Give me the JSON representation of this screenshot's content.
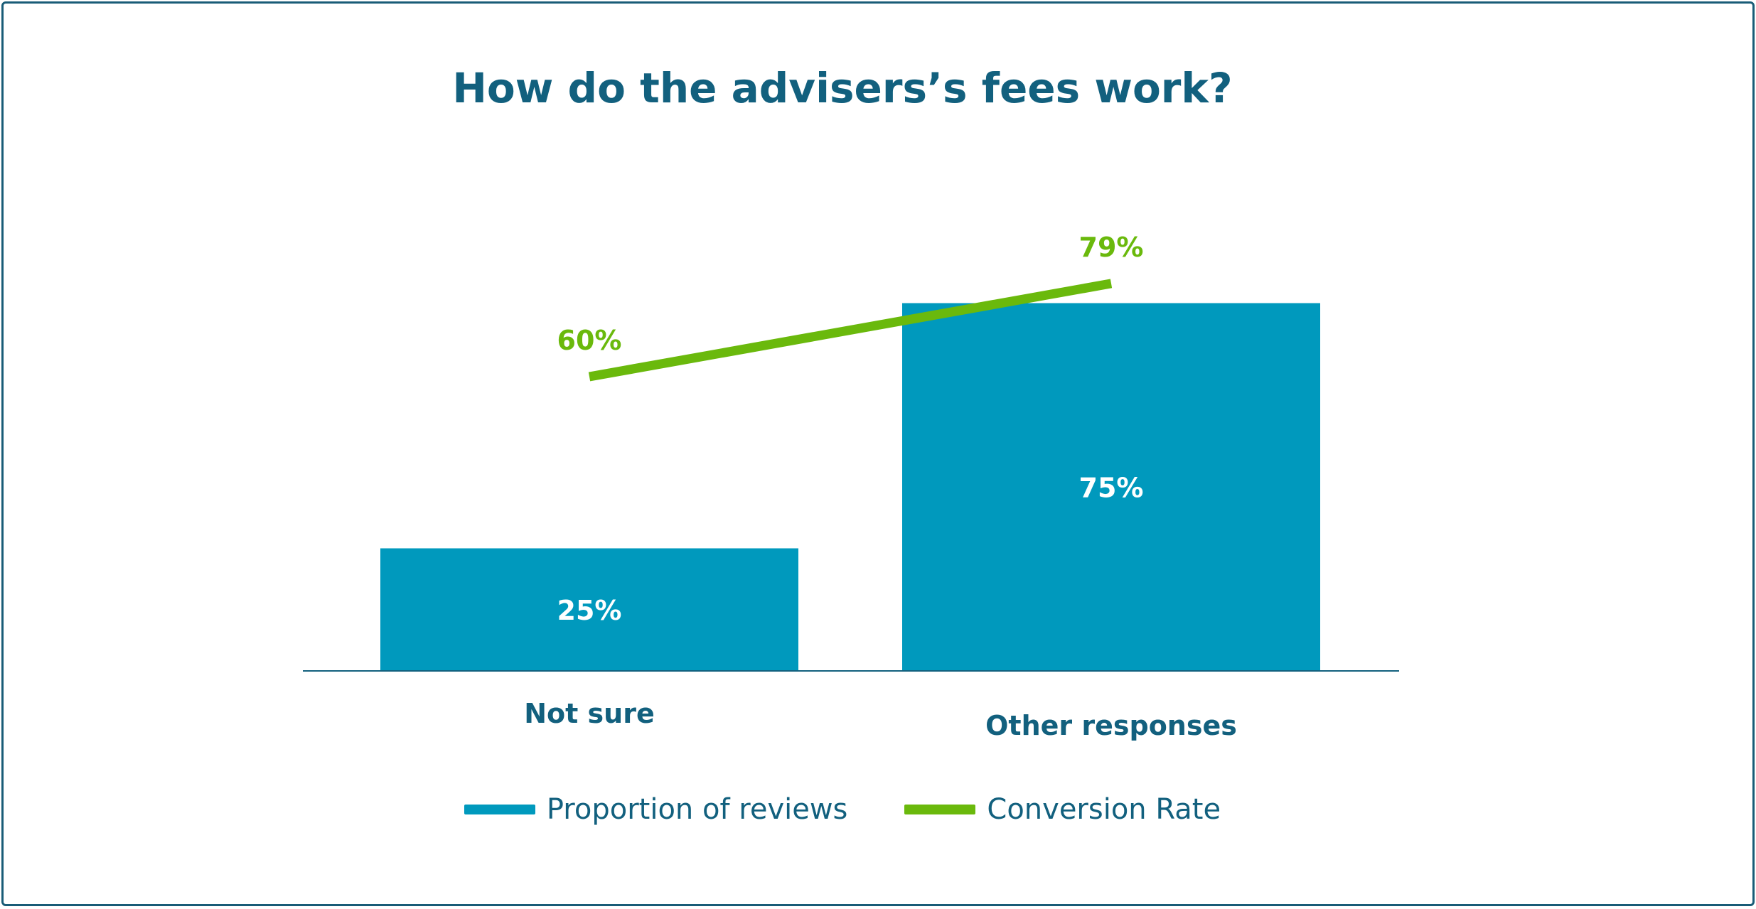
{
  "chart_data": {
    "type": "bar",
    "title": "How do the advisers’s fees work?",
    "categories": [
      "Not sure",
      "Other responses"
    ],
    "series": [
      {
        "name": "Proportion of reviews",
        "type": "bar",
        "values": [
          25,
          75
        ],
        "labels": [
          "25%",
          "75%"
        ],
        "color": "#0099bd"
      },
      {
        "name": "Conversion Rate",
        "type": "line",
        "values": [
          60,
          79
        ],
        "labels": [
          "60%",
          "79%"
        ],
        "color": "#6ab90c"
      }
    ],
    "xlabel": "",
    "ylabel": "",
    "ylim": [
      0,
      100
    ],
    "grid": false,
    "legend_position": "bottom"
  },
  "colors": {
    "title": "#12607e",
    "axis": "#12607e"
  }
}
